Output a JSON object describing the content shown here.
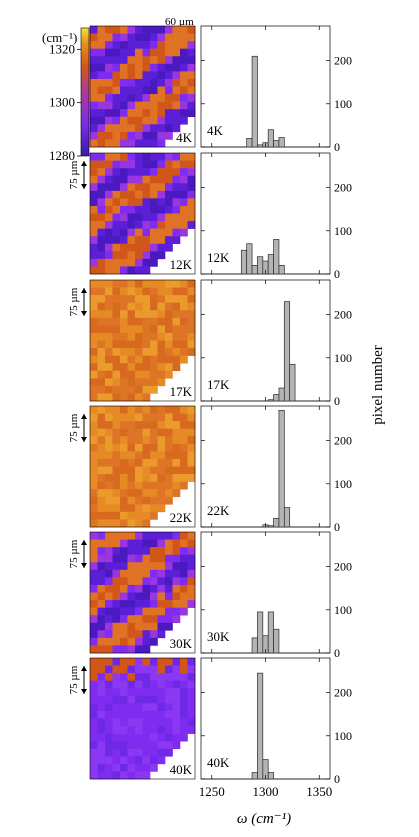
{
  "chart_data": {
    "type": "bar",
    "colorbar": {
      "unit": "(cm⁻¹)",
      "ticks": [
        1280,
        1300,
        1320
      ],
      "range": [
        1280,
        1328
      ]
    },
    "scale": {
      "top_bar": "60 µm",
      "side_bar": "75 µm"
    },
    "xlabel": "ω (cm⁻¹)",
    "ylabel": "pixel number",
    "x_ticks": [
      1250,
      1300,
      1350
    ],
    "xlim": [
      1240,
      1360
    ],
    "y_ticks": [
      0,
      100,
      200
    ],
    "ylim": [
      0,
      280
    ],
    "bin_width": 5,
    "panels": [
      {
        "temperature": "4K",
        "map_color": "mixed",
        "bins": [
          {
            "x": 1285,
            "y": 20
          },
          {
            "x": 1290,
            "y": 210
          },
          {
            "x": 1295,
            "y": 5
          },
          {
            "x": 1300,
            "y": 10
          },
          {
            "x": 1305,
            "y": 40
          },
          {
            "x": 1310,
            "y": 15
          },
          {
            "x": 1315,
            "y": 22
          }
        ]
      },
      {
        "temperature": "12K",
        "map_color": "mixed",
        "bins": [
          {
            "x": 1280,
            "y": 55
          },
          {
            "x": 1285,
            "y": 70
          },
          {
            "x": 1290,
            "y": 20
          },
          {
            "x": 1295,
            "y": 40
          },
          {
            "x": 1300,
            "y": 30
          },
          {
            "x": 1305,
            "y": 45
          },
          {
            "x": 1310,
            "y": 80
          },
          {
            "x": 1315,
            "y": 20
          }
        ]
      },
      {
        "temperature": "17K",
        "map_color": "orange",
        "bins": [
          {
            "x": 1305,
            "y": 3
          },
          {
            "x": 1310,
            "y": 15
          },
          {
            "x": 1315,
            "y": 30
          },
          {
            "x": 1320,
            "y": 230
          },
          {
            "x": 1325,
            "y": 85
          }
        ]
      },
      {
        "temperature": "22K",
        "map_color": "orange",
        "bins": [
          {
            "x": 1300,
            "y": 5
          },
          {
            "x": 1305,
            "y": 3
          },
          {
            "x": 1310,
            "y": 20
          },
          {
            "x": 1315,
            "y": 270
          },
          {
            "x": 1320,
            "y": 45
          }
        ]
      },
      {
        "temperature": "30K",
        "map_color": "mixed",
        "bins": [
          {
            "x": 1290,
            "y": 35
          },
          {
            "x": 1295,
            "y": 95
          },
          {
            "x": 1300,
            "y": 40
          },
          {
            "x": 1305,
            "y": 95
          },
          {
            "x": 1310,
            "y": 55
          }
        ]
      },
      {
        "temperature": "40K",
        "map_color": "purple",
        "bins": [
          {
            "x": 1290,
            "y": 15
          },
          {
            "x": 1295,
            "y": 245
          },
          {
            "x": 1300,
            "y": 45
          },
          {
            "x": 1305,
            "y": 15
          }
        ]
      }
    ],
    "colors": {
      "bar_fill": "#b4b4b4",
      "bar_stroke": "#2a2a2a",
      "orange": "#e07a28",
      "purple": "#7f2cf0",
      "deep_purple": "#5a1fd6",
      "red_orange": "#d1561a"
    }
  }
}
